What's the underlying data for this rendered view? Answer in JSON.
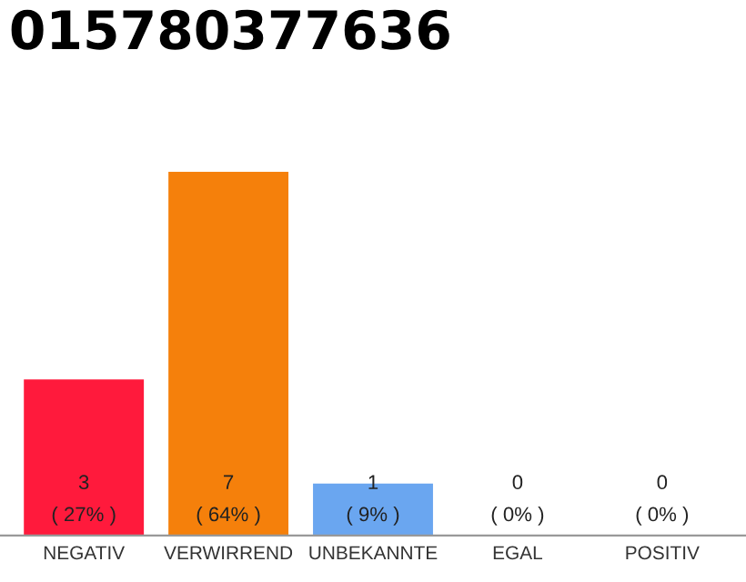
{
  "chart_data": {
    "type": "bar",
    "title": "015780377636",
    "categories": [
      "NEGATIV",
      "VERWIRREND",
      "UNBEKANNTE",
      "EGAL",
      "POSITIV"
    ],
    "values": [
      3,
      7,
      1,
      0,
      0
    ],
    "colors": [
      "#ff1a3c",
      "#f5800b",
      "#6aa6f0",
      "#cccccc",
      "#cccccc"
    ],
    "value_labels": [
      "3\n( 27% )",
      "7\n( 64% )",
      "1\n( 9% )",
      "0\n( 0% )",
      "0\n( 0% )"
    ],
    "ylim": [
      0,
      7
    ],
    "tick_labels": "x",
    "grid": false,
    "legend": false
  }
}
